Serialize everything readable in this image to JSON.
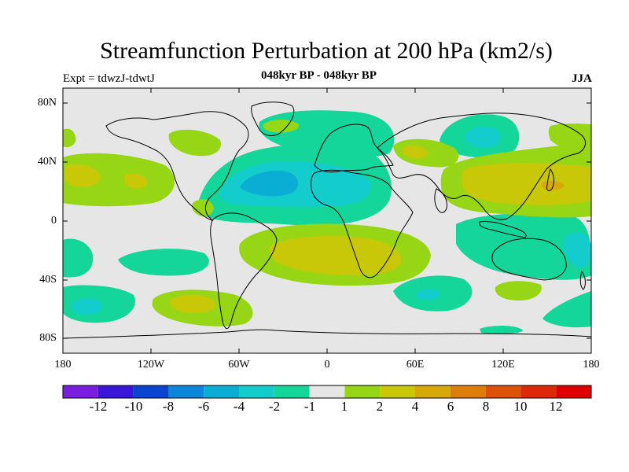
{
  "title": "Streamfunction Perturbation at 200 hPa (km2/s)",
  "left_label": "Expt = tdwzJ-tdwtJ",
  "center_label": "048kyr BP - 048kyr BP",
  "right_label": "JJA",
  "lat_labels": [
    "80N",
    "40N",
    "0",
    "40S",
    "80S"
  ],
  "lon_labels": [
    "180",
    "120W",
    "60W",
    "0",
    "60E",
    "120E",
    "180"
  ],
  "colorbar": {
    "labels": [
      "-12",
      "-10",
      "-8",
      "-6",
      "-4",
      "-2",
      "-1",
      "1",
      "2",
      "4",
      "6",
      "8",
      "10",
      "12"
    ],
    "colors": [
      "#7a1fe0",
      "#3a16d8",
      "#0a44d0",
      "#0b86da",
      "#0aaed4",
      "#13cccc",
      "#14d69a",
      "#e6e6e6",
      "#96d614",
      "#c8c808",
      "#d8a808",
      "#dc7e08",
      "#dc5208",
      "#dc2a08",
      "#e00000"
    ]
  },
  "map_colors": {
    "background": "#e6e6e6",
    "m1": "#14d69a",
    "m2": "#13cccc",
    "m4": "#0aaed4",
    "p1": "#96d614",
    "p2": "#c8c808",
    "p4": "#d8a808"
  }
}
